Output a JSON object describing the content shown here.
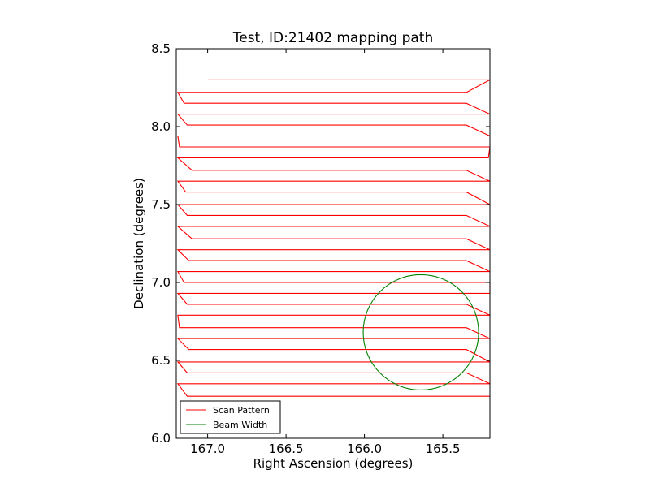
{
  "chart_data": {
    "type": "line",
    "title": "Test, ID:21402 mapping path",
    "xlabel": "Right Ascension (degrees)",
    "ylabel": "Declination (degrees)",
    "xlim": [
      167.2,
      165.2
    ],
    "ylim": [
      6.0,
      8.5
    ],
    "x_inverted": true,
    "xticks": [
      167.0,
      166.5,
      166.0,
      165.5
    ],
    "xtick_labels": [
      "167.0",
      "166.5",
      "166.0",
      "165.5"
    ],
    "yticks": [
      6.0,
      6.5,
      7.0,
      7.5,
      8.0,
      8.5
    ],
    "ytick_labels": [
      "6.0",
      "6.5",
      "7.0",
      "7.5",
      "8.0",
      "8.5"
    ],
    "grid": false,
    "legend_position": "lower-left",
    "series": [
      {
        "name": "Scan Pattern",
        "color": "#ff0000",
        "style": "raster scan rows",
        "rows": [
          {
            "dec": 8.3,
            "ra_start": 167.0,
            "ra_end": 165.2
          },
          {
            "dec": 8.22,
            "ra_start": 165.35,
            "ra_end": 167.19
          },
          {
            "dec": 8.15,
            "ra_start": 167.15,
            "ra_end": 165.35
          },
          {
            "dec": 8.08,
            "ra_start": 165.2,
            "ra_end": 167.19
          },
          {
            "dec": 8.01,
            "ra_start": 167.13,
            "ra_end": 165.35
          },
          {
            "dec": 7.94,
            "ra_start": 165.2,
            "ra_end": 167.19
          },
          {
            "dec": 7.87,
            "ra_start": 167.18,
            "ra_end": 165.2
          },
          {
            "dec": 7.8,
            "ra_start": 165.21,
            "ra_end": 167.19
          },
          {
            "dec": 7.72,
            "ra_start": 167.1,
            "ra_end": 165.35
          },
          {
            "dec": 7.65,
            "ra_start": 165.2,
            "ra_end": 167.19
          },
          {
            "dec": 7.58,
            "ra_start": 167.14,
            "ra_end": 165.35
          },
          {
            "dec": 7.5,
            "ra_start": 165.2,
            "ra_end": 167.19
          },
          {
            "dec": 7.43,
            "ra_start": 167.13,
            "ra_end": 165.35
          },
          {
            "dec": 7.36,
            "ra_start": 165.2,
            "ra_end": 167.19
          },
          {
            "dec": 7.28,
            "ra_start": 167.1,
            "ra_end": 165.35
          },
          {
            "dec": 7.21,
            "ra_start": 165.2,
            "ra_end": 167.19
          },
          {
            "dec": 7.14,
            "ra_start": 167.12,
            "ra_end": 165.35
          },
          {
            "dec": 7.07,
            "ra_start": 165.2,
            "ra_end": 167.19
          },
          {
            "dec": 7.0,
            "ra_start": 167.15,
            "ra_end": 165.2
          },
          {
            "dec": 6.93,
            "ra_start": 165.2,
            "ra_end": 167.19
          },
          {
            "dec": 6.86,
            "ra_start": 167.13,
            "ra_end": 165.35
          },
          {
            "dec": 6.79,
            "ra_start": 165.2,
            "ra_end": 167.19
          },
          {
            "dec": 6.71,
            "ra_start": 167.18,
            "ra_end": 165.35
          },
          {
            "dec": 6.64,
            "ra_start": 165.2,
            "ra_end": 167.19
          },
          {
            "dec": 6.57,
            "ra_start": 167.12,
            "ra_end": 165.35
          },
          {
            "dec": 6.49,
            "ra_start": 165.2,
            "ra_end": 167.19
          },
          {
            "dec": 6.42,
            "ra_start": 167.13,
            "ra_end": 165.35
          },
          {
            "dec": 6.35,
            "ra_start": 165.2,
            "ra_end": 167.19
          },
          {
            "dec": 6.27,
            "ra_start": 167.13,
            "ra_end": 165.2
          }
        ]
      },
      {
        "name": "Beam Width",
        "color": "#008000",
        "style": "circle",
        "center": [
          165.64,
          6.68
        ],
        "radius_dec": 0.37
      }
    ]
  }
}
